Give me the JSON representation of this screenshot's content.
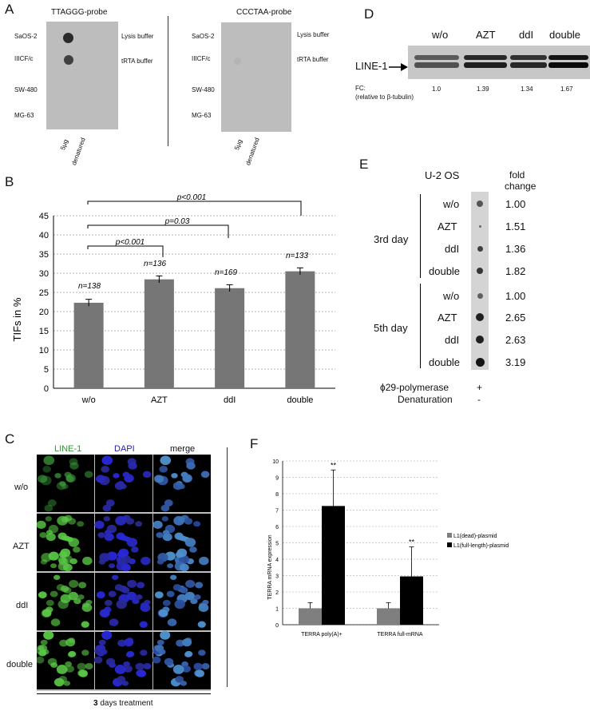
{
  "panelA": {
    "letter": "A",
    "left_probe": "TTAGGG-probe",
    "right_probe": "CCCTAA-probe",
    "rows": [
      "SaOS-2",
      "IIICF/c",
      "SW-480",
      "MG-63"
    ],
    "buffers": [
      "Lysis buffer",
      "tRTA buffer"
    ],
    "cols": [
      "5μg",
      "denatured"
    ]
  },
  "panelB": {
    "letter": "B",
    "ylabel": "TIFs in %",
    "pvals": [
      "p<0.001",
      "p=0.03",
      "p<0.001"
    ],
    "n_labels": [
      "n=138",
      "n=136",
      "n=169",
      "n=133"
    ]
  },
  "panelC": {
    "letter": "C",
    "col_headers": [
      "LINE-1",
      "DAPI",
      "merge"
    ],
    "rows": [
      "w/o",
      "AZT",
      "ddI",
      "double"
    ],
    "footer_bold": "3",
    "footer_rest": " days treatment"
  },
  "panelD": {
    "letter": "D",
    "lanes": [
      "w/o",
      "AZT",
      "ddI",
      "double"
    ],
    "band_label": "LINE-1",
    "fc_label": "FC:",
    "fc_sub": "(relative to β-tubulin)",
    "fc_values": [
      "1.0",
      "1.39",
      "1.34",
      "1.67"
    ]
  },
  "panelE": {
    "letter": "E",
    "cell_line": "U-2 OS",
    "fold_header1": "fold",
    "fold_header2": "change",
    "day3": "3rd day",
    "day5": "5th day",
    "treatments": [
      "w/o",
      "AZT",
      "ddI",
      "double",
      "w/o",
      "AZT",
      "ddI",
      "double"
    ],
    "fold_values": [
      "1.00",
      "1.51",
      "1.36",
      "1.82",
      "1.00",
      "2.65",
      "2.63",
      "3.19"
    ],
    "poly_label": "ϕ29-polymerase",
    "poly_value": "+",
    "den_label": "Denaturation",
    "den_value": "-"
  },
  "panelF": {
    "letter": "F",
    "ylabel": "TERRA mRNA expression",
    "legend": [
      "L1(dead)-plasmid",
      "L1(full-length)-plasmid"
    ]
  },
  "chart_data": [
    {
      "type": "bar",
      "panel": "B",
      "categories": [
        "w/o",
        "AZT",
        "ddI",
        "double"
      ],
      "values": [
        22.3,
        28.4,
        26.1,
        30.5
      ],
      "errors": [
        0.9,
        0.9,
        0.9,
        0.9
      ],
      "ylabel": "TIFs in %",
      "ylim": [
        0,
        45
      ],
      "yticks": [
        0,
        5,
        10,
        15,
        20,
        25,
        30,
        35,
        40,
        45
      ],
      "grid": true,
      "color": "#767676"
    },
    {
      "type": "bar",
      "panel": "F",
      "categories": [
        "TERRA poly(A)+",
        "TERRA full-mRNA"
      ],
      "series": [
        {
          "name": "L1(dead)-plasmid",
          "values": [
            1.0,
            1.0
          ],
          "errors": [
            0.35,
            0.35
          ],
          "color": "#7f7f7f"
        },
        {
          "name": "L1(full-length)-plasmid",
          "values": [
            7.25,
            2.95
          ],
          "errors": [
            2.2,
            1.8
          ],
          "color": "#000000"
        }
      ],
      "significance": [
        "**",
        "**"
      ],
      "ylabel": "TERRA mRNA expression",
      "ylim": [
        0,
        10
      ],
      "yticks": [
        0,
        1,
        2,
        3,
        4,
        5,
        6,
        7,
        8,
        9,
        10
      ],
      "grid": true,
      "legend_position": "right"
    }
  ]
}
